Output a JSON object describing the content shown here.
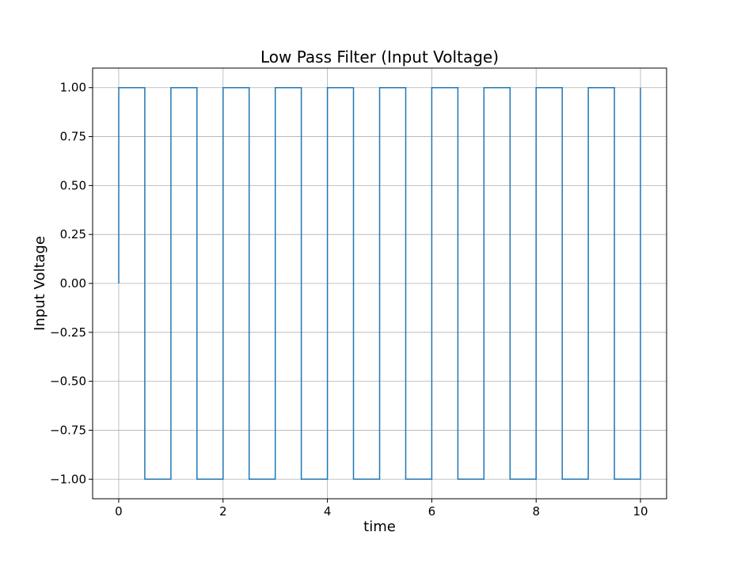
{
  "chart_data": {
    "type": "line",
    "title": "Low Pass Filter (Input Voltage)",
    "xlabel": "time",
    "ylabel": "Input Voltage",
    "xlim": [
      -0.5,
      10.5
    ],
    "ylim": [
      -1.1,
      1.1
    ],
    "x_ticks": [
      0,
      2,
      4,
      6,
      8,
      10
    ],
    "x_tick_labels": [
      "0",
      "2",
      "4",
      "6",
      "8",
      "10"
    ],
    "y_ticks": [
      1.0,
      0.75,
      0.5,
      0.25,
      0.0,
      -0.25,
      -0.5,
      -0.75,
      -1.0
    ],
    "y_tick_labels": [
      "1.00",
      "0.75",
      "0.50",
      "0.25",
      "0.00",
      "−0.25",
      "−0.50",
      "−0.75",
      "−1.00"
    ],
    "grid": true,
    "series": [
      {
        "color": "#1f77b4",
        "step": true,
        "x": [
          0,
          0,
          0.5,
          0.5,
          1.0,
          1.0,
          1.5,
          1.5,
          2.0,
          2.0,
          2.5,
          2.5,
          3.0,
          3.0,
          3.5,
          3.5,
          4.0,
          4.0,
          4.5,
          4.5,
          5.0,
          5.0,
          5.5,
          5.5,
          6.0,
          6.0,
          6.5,
          6.5,
          7.0,
          7.0,
          7.5,
          7.5,
          8.0,
          8.0,
          8.5,
          8.5,
          9.0,
          9.0,
          9.5,
          9.5,
          10.0,
          10.0
        ],
        "y": [
          0,
          1,
          1,
          -1,
          -1,
          1,
          1,
          -1,
          -1,
          1,
          1,
          -1,
          -1,
          1,
          1,
          -1,
          -1,
          1,
          1,
          -1,
          -1,
          1,
          1,
          -1,
          -1,
          1,
          1,
          -1,
          -1,
          1,
          1,
          -1,
          -1,
          1,
          1,
          -1,
          -1,
          1,
          1,
          -1,
          -1,
          1
        ]
      }
    ]
  }
}
